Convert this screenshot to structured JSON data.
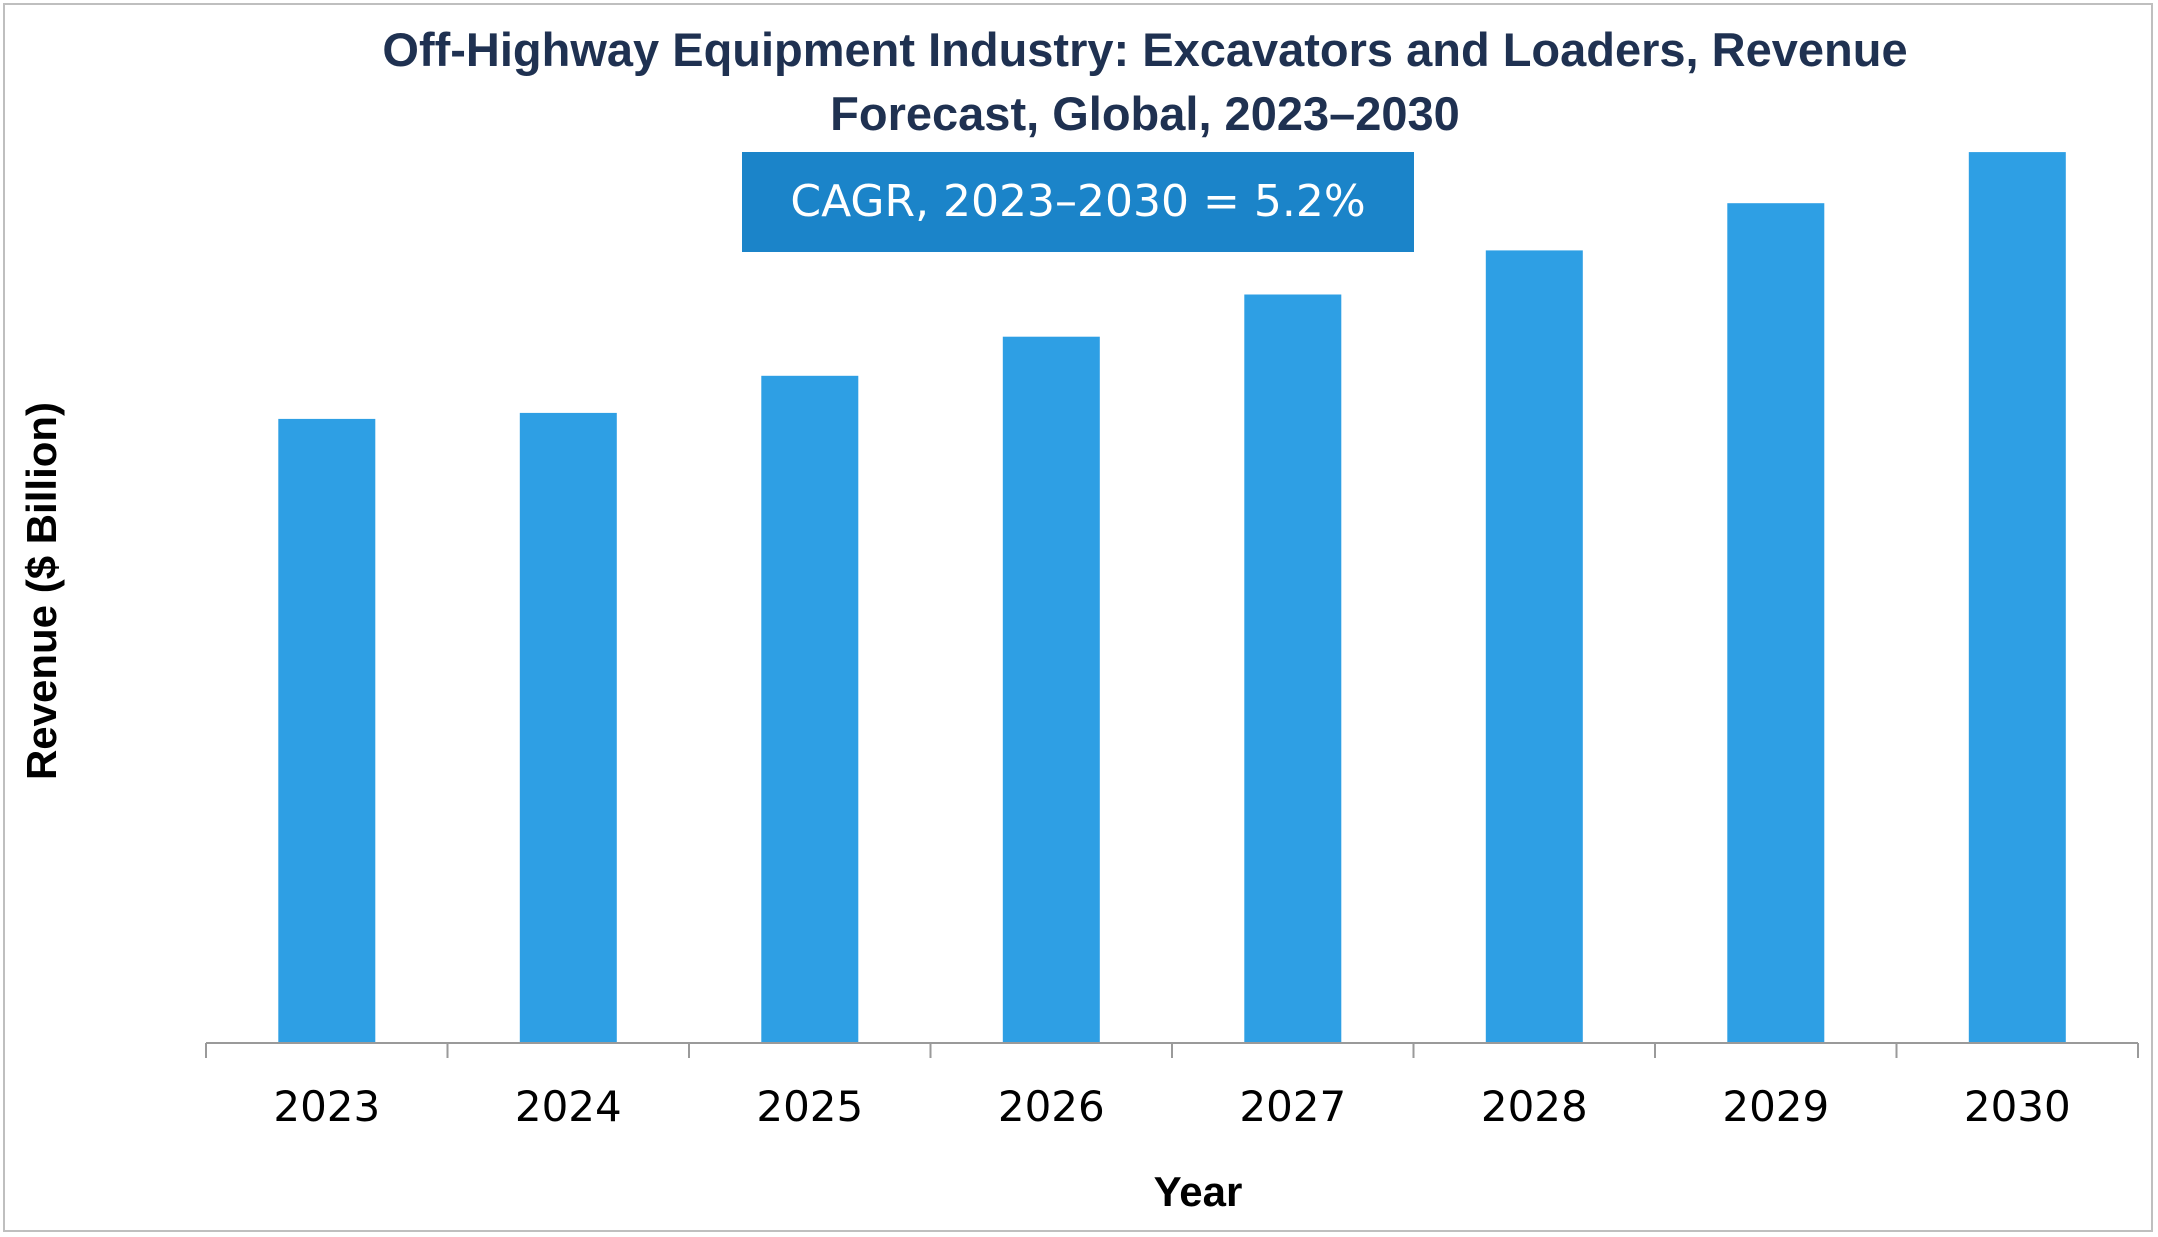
{
  "chart_data": {
    "type": "bar",
    "title": "Off-Highway Equipment Industry: Excavators and Loaders, Revenue Forecast, Global, 2023–2030",
    "annotation": "CAGR, 2023–2030 = 5.2%",
    "xlabel": "Year",
    "ylabel": "Revenue ($ Billion)",
    "categories": [
      "2023",
      "2024",
      "2025",
      "2026",
      "2027",
      "2028",
      "2029",
      "2030"
    ],
    "values": [
      62.2,
      62.8,
      66.5,
      70.4,
      74.6,
      79.0,
      83.7,
      88.8
    ],
    "ylim": [
      0,
      91
    ],
    "y_ticks_shown": false,
    "grid": false,
    "bar_color": "#2e9fe4",
    "annotation_color": "#1b84c9",
    "title_color": "#1f3151"
  }
}
